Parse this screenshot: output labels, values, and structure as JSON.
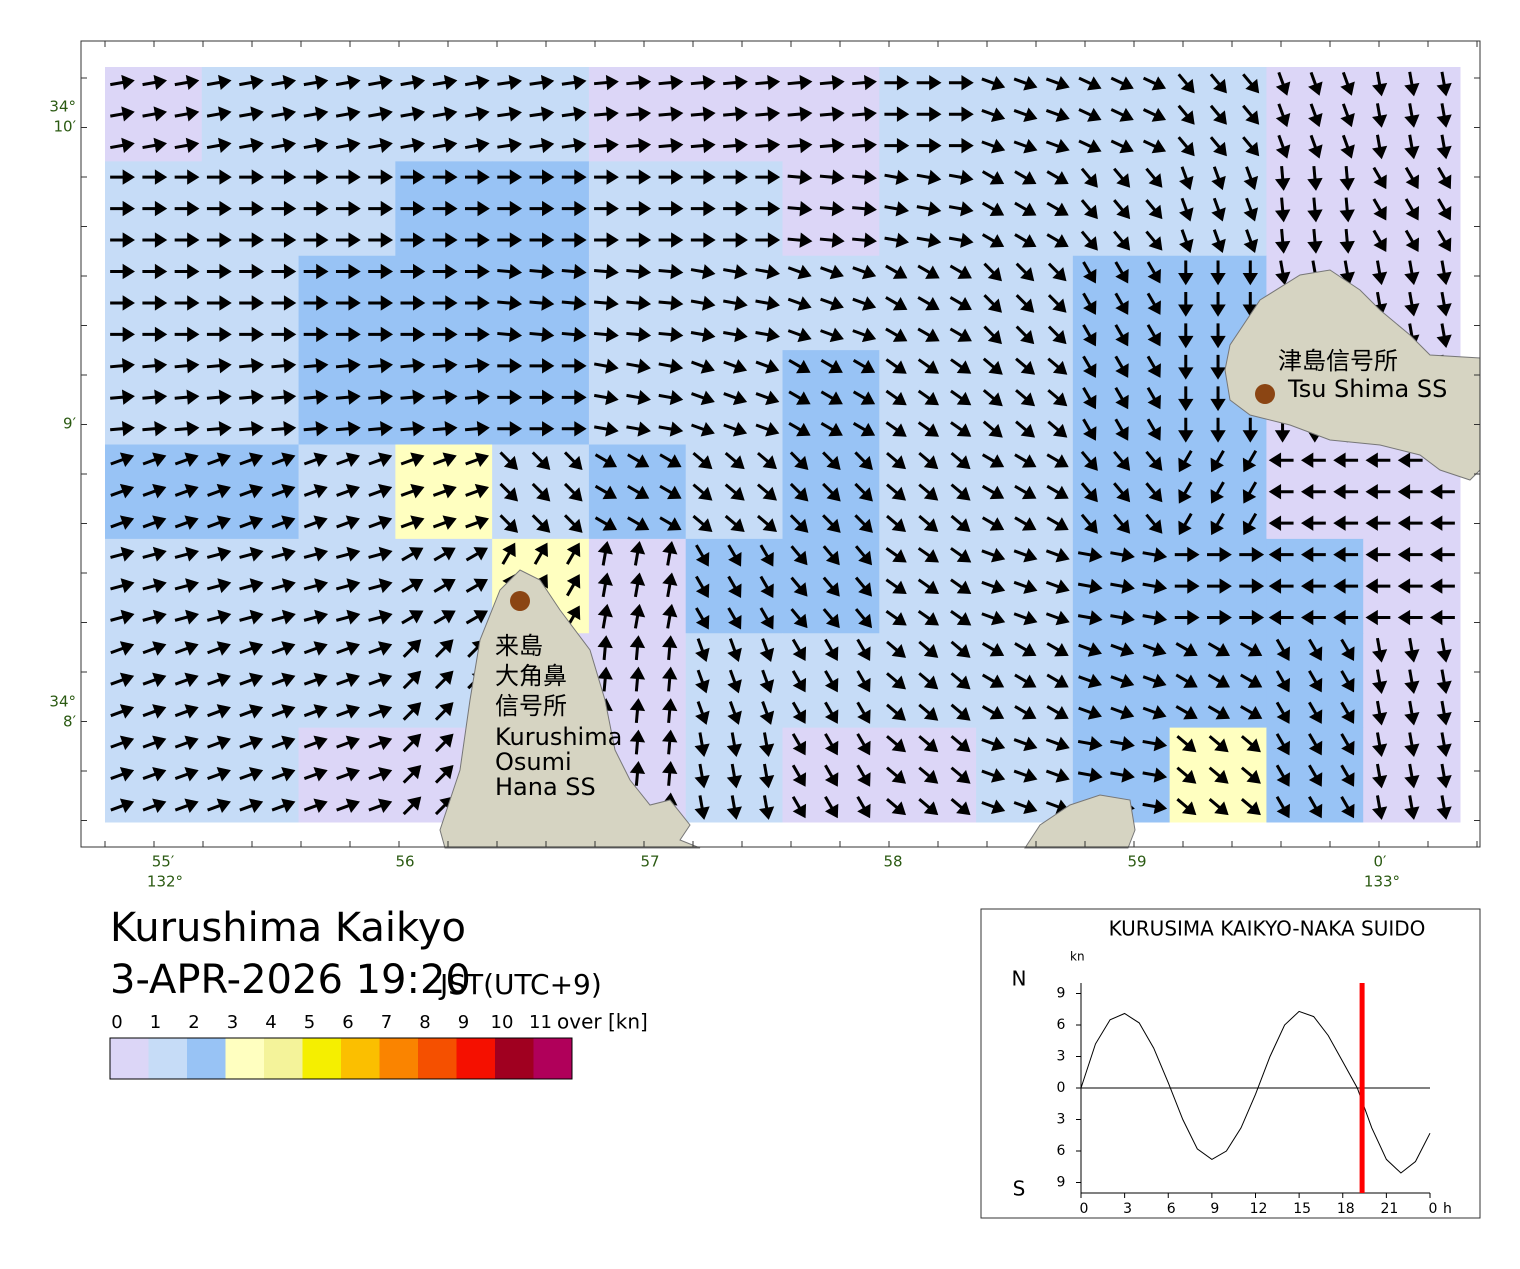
{
  "map": {
    "lon_labels": [
      "55′",
      "56",
      "57",
      "58",
      "59",
      "0′"
    ],
    "lon_degree_labels": [
      "132°",
      "133°"
    ],
    "lat_labels": [
      [
        "34°",
        "10′"
      ],
      [
        "9′"
      ],
      [
        "34°",
        "8′"
      ]
    ],
    "stations": [
      {
        "name_ja": [
          "津島信号所"
        ],
        "name_en": [
          "Tsu Shima SS"
        ]
      },
      {
        "name_ja": [
          "来島",
          "大角鼻",
          "信号所"
        ],
        "name_en": [
          "Kurushima",
          "Osumi",
          "Hana SS"
        ]
      }
    ],
    "current_field": {
      "direction_deg": [
        [
          -10,
          -10,
          -10,
          -10,
          -8,
          -5,
          -5,
          -5,
          0,
          20,
          25,
          50,
          70,
          80
        ],
        [
          0,
          0,
          0,
          0,
          0,
          0,
          0,
          5,
          10,
          30,
          50,
          70,
          85,
          60
        ],
        [
          0,
          0,
          0,
          0,
          5,
          5,
          10,
          20,
          30,
          45,
          60,
          90,
          80,
          80
        ],
        [
          -5,
          -5,
          -5,
          -5,
          0,
          10,
          20,
          30,
          35,
          40,
          60,
          90,
          90,
          80
        ],
        [
          -20,
          -20,
          -20,
          -20,
          45,
          30,
          40,
          45,
          40,
          30,
          50,
          120,
          180,
          180
        ],
        [
          -15,
          -15,
          -15,
          -30,
          -60,
          -80,
          60,
          50,
          35,
          20,
          10,
          0,
          180,
          180
        ],
        [
          -20,
          -20,
          -20,
          -45,
          -80,
          -85,
          70,
          60,
          40,
          30,
          20,
          30,
          60,
          80
        ],
        [
          -20,
          -20,
          -20,
          -45,
          -80,
          -85,
          80,
          60,
          40,
          20,
          10,
          40,
          60,
          80
        ]
      ],
      "speed_kn": [
        [
          0.6,
          1.5,
          1.5,
          1.5,
          1.5,
          0.6,
          0.6,
          0.6,
          1.5,
          1.5,
          1.5,
          1.5,
          0.6,
          0.6
        ],
        [
          1.5,
          1.5,
          1.5,
          2.4,
          2.4,
          1.5,
          1.5,
          0.6,
          1.5,
          1.5,
          1.5,
          1.5,
          0.6,
          0.6
        ],
        [
          1.5,
          1.5,
          2.4,
          2.4,
          2.4,
          1.5,
          1.5,
          1.5,
          1.5,
          1.5,
          2.4,
          2.4,
          0.6,
          0.6
        ],
        [
          1.5,
          1.5,
          2.4,
          2.4,
          2.4,
          1.5,
          1.5,
          2.4,
          1.5,
          1.5,
          2.4,
          2.4,
          0.6,
          0.6
        ],
        [
          2.4,
          2.4,
          1.5,
          3.2,
          1.5,
          2.4,
          1.5,
          2.4,
          1.5,
          1.5,
          2.4,
          2.4,
          0.6,
          0.6
        ],
        [
          1.5,
          1.5,
          1.5,
          1.5,
          3.2,
          0.6,
          2.4,
          2.4,
          1.5,
          1.5,
          2.4,
          2.4,
          2.4,
          0.6
        ],
        [
          1.5,
          1.5,
          1.5,
          1.5,
          0.6,
          0.6,
          1.5,
          1.5,
          1.5,
          1.5,
          2.4,
          2.4,
          2.4,
          0.6
        ],
        [
          1.5,
          1.5,
          0.6,
          0.6,
          0.6,
          0.6,
          1.5,
          0.6,
          0.6,
          1.5,
          2.4,
          3.2,
          2.4,
          0.6
        ]
      ]
    }
  },
  "title": "Kurushima Kaikyo",
  "datetime": "3-APR-2026 19:20",
  "timezone": "JST(UTC+9)",
  "legend": {
    "labels": [
      "0",
      "1",
      "2",
      "3",
      "4",
      "5",
      "6",
      "7",
      "8",
      "9",
      "10",
      "11"
    ],
    "unit": "over [kn]",
    "colors": [
      "#dcd6f7",
      "#c6dcf7",
      "#98c3f5",
      "#ffffc0",
      "#f4f39a",
      "#f5ef00",
      "#fbbf00",
      "#fa8400",
      "#f55000",
      "#f51000",
      "#a00020",
      "#b0005a"
    ]
  },
  "tide_chart": {
    "title": "KURUSIMA KAIKYO-NAKA SUIDO",
    "y_unit": "kn",
    "north": "N",
    "south": "S",
    "x_unit": "h",
    "xlim": [
      0,
      24
    ],
    "ylim": [
      -10,
      10
    ],
    "xticks": [
      0,
      3,
      6,
      9,
      12,
      15,
      18,
      21,
      {
        "value": 24,
        "label": "0"
      }
    ],
    "yticks": [
      9,
      6,
      3,
      0,
      {
        "value": -3,
        "label": "3"
      },
      {
        "value": -6,
        "label": "6"
      },
      {
        "value": -9,
        "label": "9"
      }
    ],
    "x": [
      0,
      1,
      2,
      3,
      4,
      5,
      6,
      7,
      8,
      9,
      10,
      11,
      12,
      13,
      14,
      15,
      16,
      17,
      18,
      19,
      20,
      21,
      22,
      23,
      24
    ],
    "values": [
      0,
      4.2,
      6.5,
      7.1,
      6.2,
      3.8,
      0.5,
      -3.0,
      -5.8,
      -6.8,
      -6.0,
      -3.8,
      -0.6,
      3.0,
      6.0,
      7.3,
      6.8,
      5.0,
      2.5,
      0,
      -3.8,
      -6.8,
      -8.1,
      -7.0,
      -4.3
    ],
    "color": "#000000",
    "current_time_h": 19.33,
    "marker_color": "#ff0000"
  }
}
